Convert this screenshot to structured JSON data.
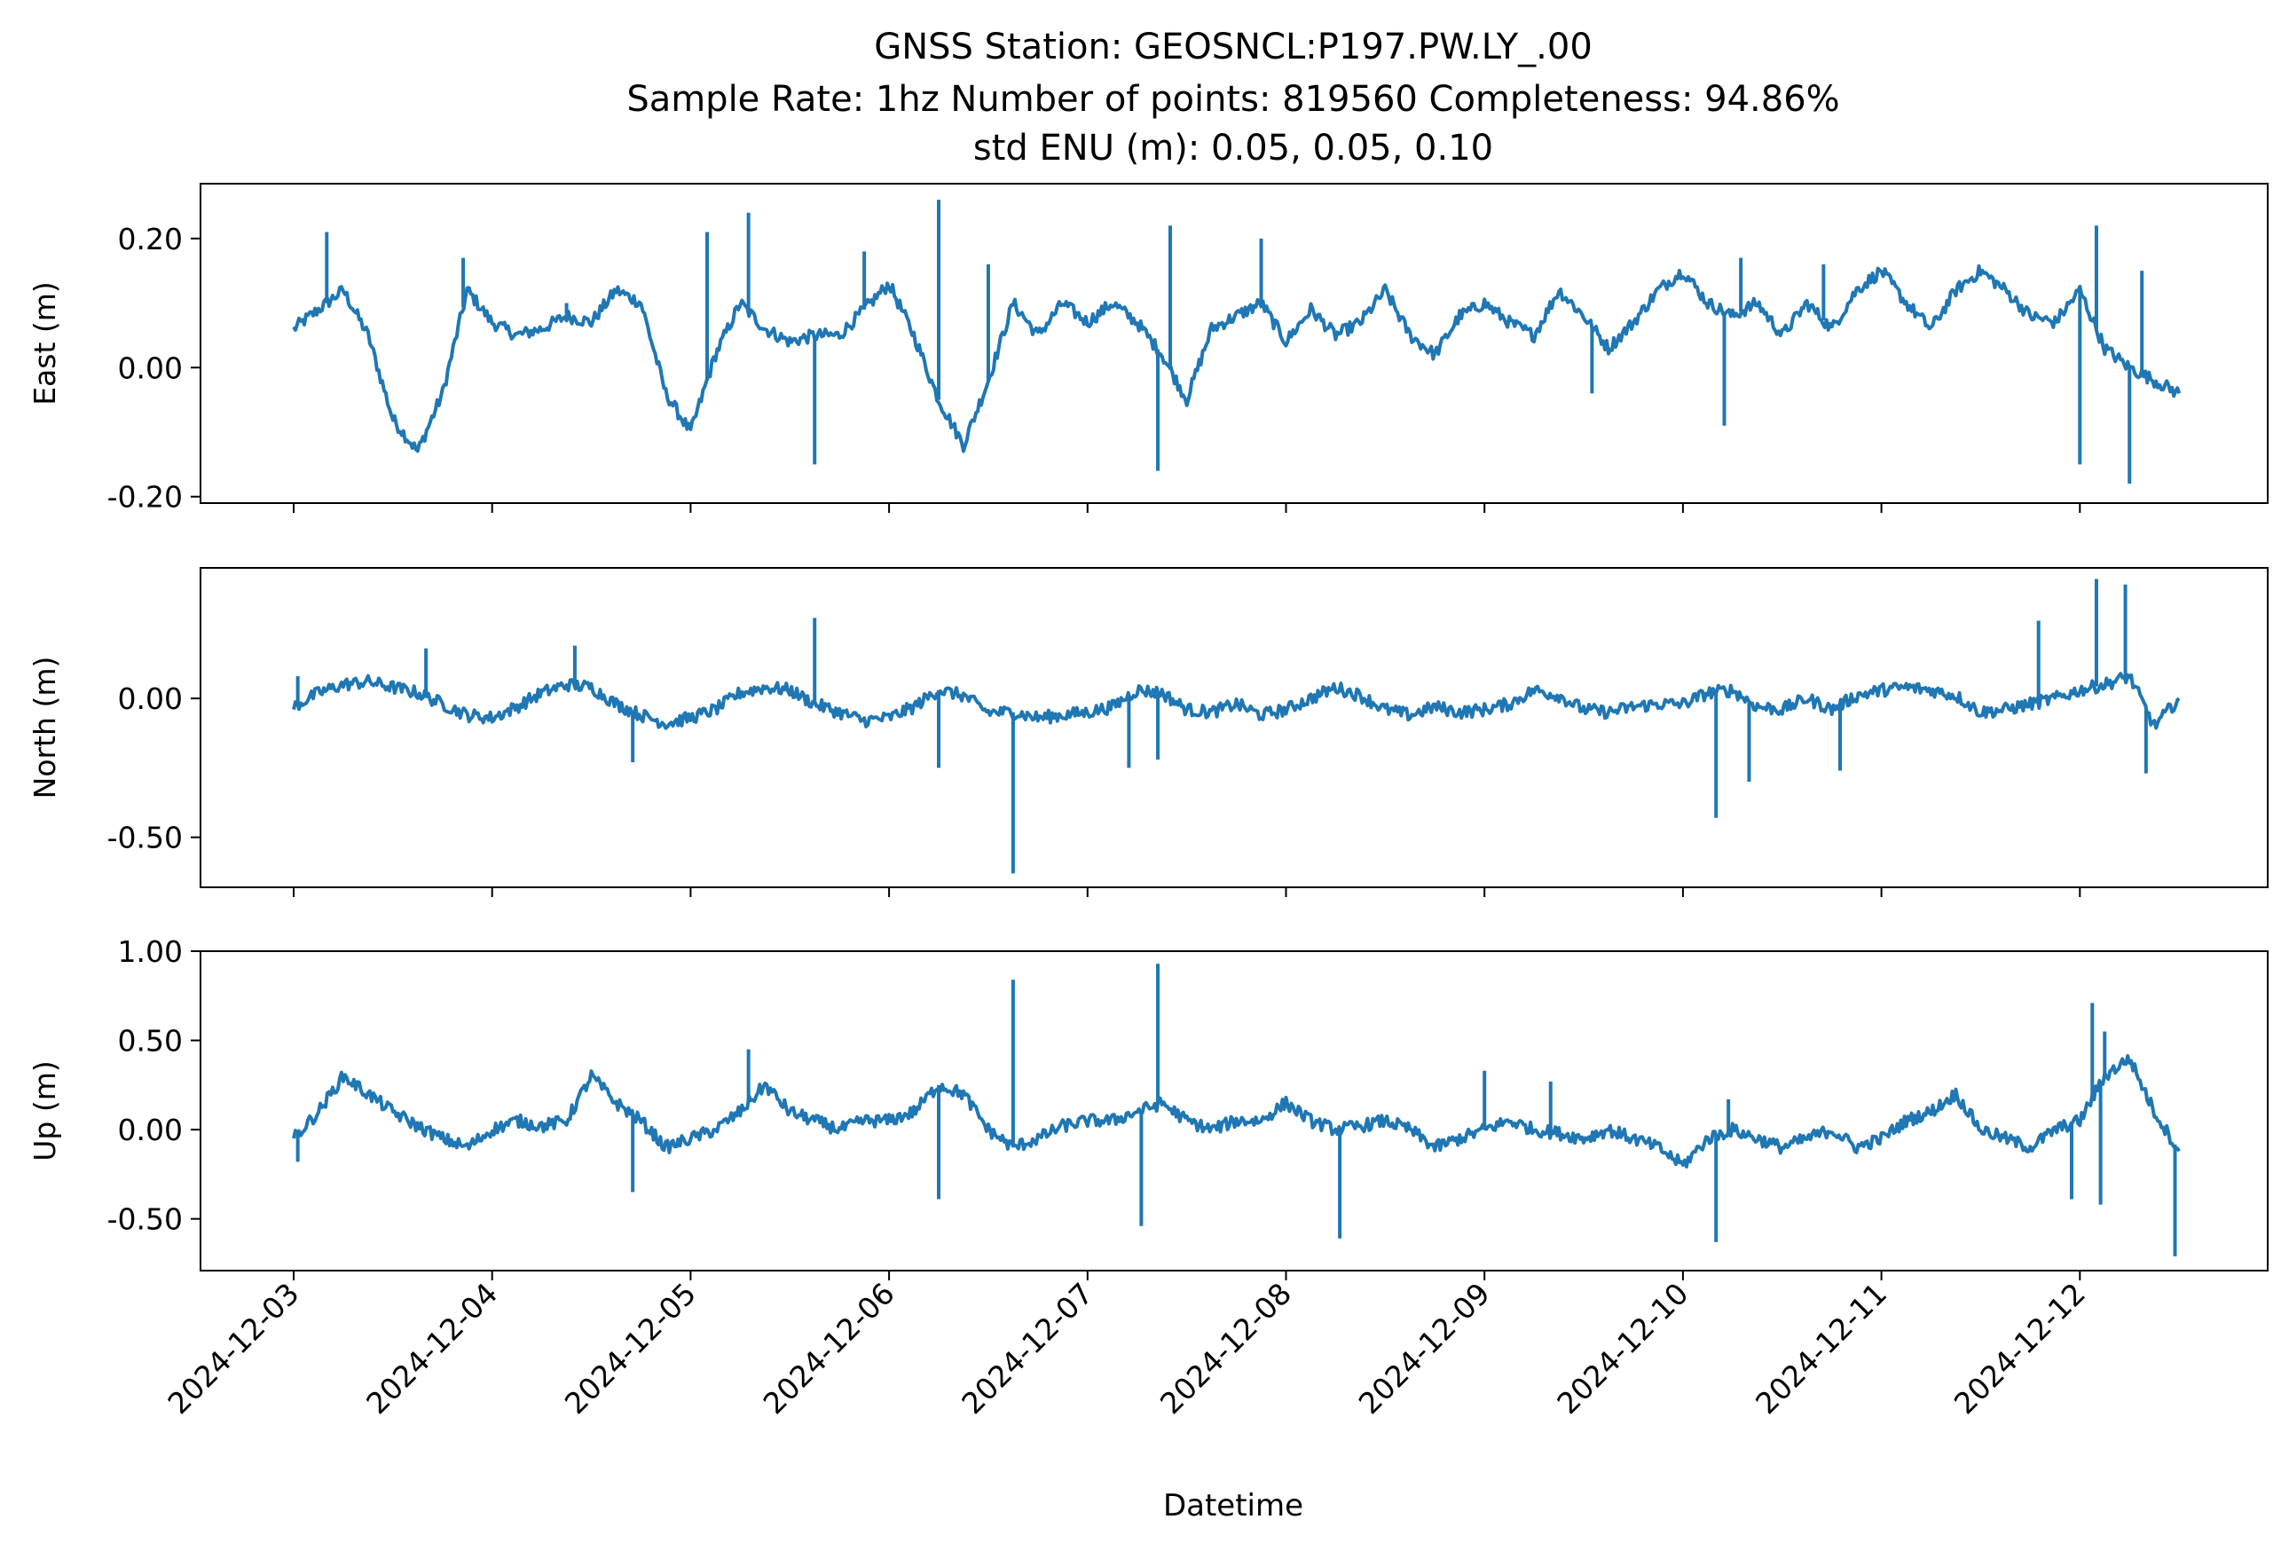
{
  "figure": {
    "title_lines": [
      "GNSS Station: GEOSNCL:P197.PW.LY_.00",
      "Sample Rate: 1hz   Number of points: 819560    Completeness:  94.86%",
      "std ENU (m):  0.05, 0.05, 0.10"
    ],
    "xlabel": "Datetime",
    "line_color": "#1f77b4"
  },
  "chart_data": [
    {
      "type": "line",
      "ylabel": "East (m)",
      "yticks": [
        -0.2,
        0.0,
        0.2
      ],
      "ytick_labels": [
        "-0.20",
        "0.00",
        "0.20"
      ],
      "ylim": [
        -0.21,
        0.285
      ],
      "xlim": [
        "2024-12-02T12:00",
        "2024-12-13T00:00"
      ],
      "x": [
        "2024-12-03T00:00",
        "2024-12-03T03:00",
        "2024-12-03T06:00",
        "2024-12-03T09:00",
        "2024-12-03T12:00",
        "2024-12-03T15:00",
        "2024-12-03T18:00",
        "2024-12-03T21:00",
        "2024-12-04T00:00",
        "2024-12-04T03:00",
        "2024-12-04T06:00",
        "2024-12-04T09:00",
        "2024-12-04T12:00",
        "2024-12-04T15:00",
        "2024-12-04T18:00",
        "2024-12-04T21:00",
        "2024-12-05T00:00",
        "2024-12-05T03:00",
        "2024-12-05T06:00",
        "2024-12-05T09:00",
        "2024-12-05T12:00",
        "2024-12-05T15:00",
        "2024-12-05T18:00",
        "2024-12-05T21:00",
        "2024-12-06T00:00",
        "2024-12-06T03:00",
        "2024-12-06T06:00",
        "2024-12-06T09:00",
        "2024-12-06T12:00",
        "2024-12-06T15:00",
        "2024-12-06T18:00",
        "2024-12-06T21:00",
        "2024-12-07T00:00",
        "2024-12-07T03:00",
        "2024-12-07T06:00",
        "2024-12-07T09:00",
        "2024-12-07T12:00",
        "2024-12-07T15:00",
        "2024-12-07T18:00",
        "2024-12-07T21:00",
        "2024-12-08T00:00",
        "2024-12-08T03:00",
        "2024-12-08T06:00",
        "2024-12-08T09:00",
        "2024-12-08T12:00",
        "2024-12-08T15:00",
        "2024-12-08T18:00",
        "2024-12-08T21:00",
        "2024-12-09T00:00",
        "2024-12-09T03:00",
        "2024-12-09T06:00",
        "2024-12-09T09:00",
        "2024-12-09T12:00",
        "2024-12-09T15:00",
        "2024-12-09T18:00",
        "2024-12-09T21:00",
        "2024-12-10T00:00",
        "2024-12-10T03:00",
        "2024-12-10T06:00",
        "2024-12-10T09:00",
        "2024-12-10T12:00",
        "2024-12-10T15:00",
        "2024-12-10T18:00",
        "2024-12-10T21:00",
        "2024-12-11T00:00",
        "2024-12-11T03:00",
        "2024-12-11T06:00",
        "2024-12-11T09:00",
        "2024-12-11T12:00",
        "2024-12-11T15:00",
        "2024-12-11T18:00",
        "2024-12-11T21:00",
        "2024-12-12T00:00",
        "2024-12-12T03:00",
        "2024-12-12T06:00",
        "2024-12-12T09:00",
        "2024-12-12T12:00"
      ],
      "y": [
        0.06,
        0.09,
        0.12,
        0.05,
        -0.08,
        -0.13,
        -0.04,
        0.12,
        0.07,
        0.05,
        0.06,
        0.08,
        0.07,
        0.12,
        0.1,
        -0.04,
        -0.1,
        0.02,
        0.1,
        0.06,
        0.04,
        0.05,
        0.05,
        0.09,
        0.13,
        0.05,
        -0.05,
        -0.12,
        -0.02,
        0.1,
        0.05,
        0.1,
        0.07,
        0.1,
        0.07,
        0.02,
        -0.05,
        0.06,
        0.08,
        0.1,
        0.04,
        0.09,
        0.05,
        0.07,
        0.12,
        0.05,
        0.02,
        0.08,
        0.1,
        0.07,
        0.05,
        0.12,
        0.08,
        0.03,
        0.07,
        0.12,
        0.15,
        0.1,
        0.08,
        0.1,
        0.05,
        0.1,
        0.06,
        0.12,
        0.15,
        0.1,
        0.06,
        0.12,
        0.15,
        0.12,
        0.08,
        0.07,
        0.12,
        0.03,
        0.0,
        -0.02,
        -0.04
      ],
      "spikes": [
        {
          "x": "2024-12-03T04:00",
          "y": 0.21
        },
        {
          "x": "2024-12-03T20:30",
          "y": 0.17
        },
        {
          "x": "2024-12-04T09:00",
          "y": 0.1
        },
        {
          "x": "2024-12-05T02:00",
          "y": 0.21
        },
        {
          "x": "2024-12-05T07:00",
          "y": 0.24
        },
        {
          "x": "2024-12-05T15:00",
          "y": -0.15
        },
        {
          "x": "2024-12-05T21:00",
          "y": 0.18
        },
        {
          "x": "2024-12-06T06:00",
          "y": 0.26
        },
        {
          "x": "2024-12-06T12:00",
          "y": 0.16
        },
        {
          "x": "2024-12-07T08:30",
          "y": -0.16
        },
        {
          "x": "2024-12-07T10:00",
          "y": 0.22
        },
        {
          "x": "2024-12-07T21:00",
          "y": 0.2
        },
        {
          "x": "2024-12-09T13:00",
          "y": -0.04
        },
        {
          "x": "2024-12-10T05:00",
          "y": -0.09
        },
        {
          "x": "2024-12-10T07:00",
          "y": 0.17
        },
        {
          "x": "2024-12-10T17:00",
          "y": 0.16
        },
        {
          "x": "2024-12-12T02:00",
          "y": 0.22
        },
        {
          "x": "2024-12-12T00:00",
          "y": -0.15
        },
        {
          "x": "2024-12-12T06:00",
          "y": -0.18
        },
        {
          "x": "2024-12-12T07:30",
          "y": 0.15
        }
      ]
    },
    {
      "type": "line",
      "ylabel": "North (m)",
      "yticks": [
        -0.5,
        0.0
      ],
      "ytick_labels": [
        "-0.50",
        "0.00"
      ],
      "ylim": [
        -0.68,
        0.47
      ],
      "xlim": [
        "2024-12-02T12:00",
        "2024-12-13T00:00"
      ],
      "x": [
        "2024-12-03T00:00",
        "2024-12-03T03:00",
        "2024-12-03T06:00",
        "2024-12-03T09:00",
        "2024-12-03T12:00",
        "2024-12-03T15:00",
        "2024-12-03T18:00",
        "2024-12-03T21:00",
        "2024-12-04T00:00",
        "2024-12-04T03:00",
        "2024-12-04T06:00",
        "2024-12-04T09:00",
        "2024-12-04T12:00",
        "2024-12-04T15:00",
        "2024-12-04T18:00",
        "2024-12-04T21:00",
        "2024-12-05T00:00",
        "2024-12-05T03:00",
        "2024-12-05T06:00",
        "2024-12-05T09:00",
        "2024-12-05T12:00",
        "2024-12-05T15:00",
        "2024-12-05T18:00",
        "2024-12-05T21:00",
        "2024-12-06T00:00",
        "2024-12-06T03:00",
        "2024-12-06T06:00",
        "2024-12-06T09:00",
        "2024-12-06T12:00",
        "2024-12-06T15:00",
        "2024-12-06T18:00",
        "2024-12-06T21:00",
        "2024-12-07T00:00",
        "2024-12-07T03:00",
        "2024-12-07T06:00",
        "2024-12-07T09:00",
        "2024-12-07T12:00",
        "2024-12-07T15:00",
        "2024-12-07T18:00",
        "2024-12-07T21:00",
        "2024-12-08T00:00",
        "2024-12-08T03:00",
        "2024-12-08T06:00",
        "2024-12-08T09:00",
        "2024-12-08T12:00",
        "2024-12-08T15:00",
        "2024-12-08T18:00",
        "2024-12-08T21:00",
        "2024-12-09T00:00",
        "2024-12-09T03:00",
        "2024-12-09T06:00",
        "2024-12-09T09:00",
        "2024-12-09T12:00",
        "2024-12-09T15:00",
        "2024-12-09T18:00",
        "2024-12-09T21:00",
        "2024-12-10T00:00",
        "2024-12-10T03:00",
        "2024-12-10T06:00",
        "2024-12-10T09:00",
        "2024-12-10T12:00",
        "2024-12-10T15:00",
        "2024-12-10T18:00",
        "2024-12-10T21:00",
        "2024-12-11T00:00",
        "2024-12-11T03:00",
        "2024-12-11T06:00",
        "2024-12-11T09:00",
        "2024-12-11T12:00",
        "2024-12-11T15:00",
        "2024-12-11T18:00",
        "2024-12-11T21:00",
        "2024-12-12T00:00",
        "2024-12-12T03:00",
        "2024-12-12T06:00",
        "2024-12-12T09:00",
        "2024-12-12T12:00"
      ],
      "y": [
        -0.03,
        0.02,
        0.05,
        0.06,
        0.04,
        0.02,
        -0.02,
        -0.06,
        -0.07,
        -0.03,
        0.02,
        0.05,
        0.04,
        -0.02,
        -0.06,
        -0.09,
        -0.07,
        -0.04,
        0.02,
        0.04,
        0.03,
        -0.02,
        -0.05,
        -0.08,
        -0.07,
        -0.03,
        0.03,
        0.01,
        -0.05,
        -0.05,
        -0.07,
        -0.06,
        -0.05,
        -0.03,
        0.03,
        0.02,
        -0.04,
        -0.05,
        -0.02,
        -0.06,
        -0.04,
        0.0,
        0.04,
        0.01,
        -0.04,
        -0.06,
        -0.03,
        -0.05,
        -0.04,
        -0.02,
        0.03,
        0.01,
        -0.04,
        -0.05,
        -0.03,
        -0.02,
        -0.02,
        0.02,
        0.03,
        -0.03,
        -0.04,
        0.0,
        -0.04,
        0.01,
        0.03,
        0.04,
        0.03,
        0.01,
        -0.05,
        -0.04,
        -0.02,
        0.0,
        0.03,
        0.05,
        0.08,
        -0.1,
        0.0
      ],
      "spikes": [
        {
          "x": "2024-12-03T00:30",
          "y": 0.08
        },
        {
          "x": "2024-12-03T16:00",
          "y": 0.18
        },
        {
          "x": "2024-12-04T10:00",
          "y": 0.19
        },
        {
          "x": "2024-12-04T17:00",
          "y": -0.23
        },
        {
          "x": "2024-12-05T15:00",
          "y": 0.29
        },
        {
          "x": "2024-12-06T06:00",
          "y": -0.25
        },
        {
          "x": "2024-12-06T15:00",
          "y": -0.63
        },
        {
          "x": "2024-12-07T05:00",
          "y": -0.25
        },
        {
          "x": "2024-12-07T08:30",
          "y": -0.22
        },
        {
          "x": "2024-12-10T04:00",
          "y": -0.43
        },
        {
          "x": "2024-12-10T08:00",
          "y": -0.3
        },
        {
          "x": "2024-12-10T19:00",
          "y": -0.26
        },
        {
          "x": "2024-12-11T19:00",
          "y": 0.28
        },
        {
          "x": "2024-12-12T02:00",
          "y": 0.43
        },
        {
          "x": "2024-12-12T05:30",
          "y": 0.41
        },
        {
          "x": "2024-12-12T08:00",
          "y": -0.27
        }
      ]
    },
    {
      "type": "line",
      "ylabel": "Up (m)",
      "yticks": [
        -0.5,
        0.0,
        0.5,
        1.0
      ],
      "ytick_labels": [
        "-0.50",
        "0.00",
        "0.50",
        "1.00"
      ],
      "ylim": [
        -0.79,
        1.0
      ],
      "xlim": [
        "2024-12-02T12:00",
        "2024-12-13T00:00"
      ],
      "x": [
        "2024-12-03T00:00",
        "2024-12-03T03:00",
        "2024-12-03T06:00",
        "2024-12-03T09:00",
        "2024-12-03T12:00",
        "2024-12-03T15:00",
        "2024-12-03T18:00",
        "2024-12-03T21:00",
        "2024-12-04T00:00",
        "2024-12-04T03:00",
        "2024-12-04T06:00",
        "2024-12-04T09:00",
        "2024-12-04T12:00",
        "2024-12-04T15:00",
        "2024-12-04T18:00",
        "2024-12-04T21:00",
        "2024-12-05T00:00",
        "2024-12-05T03:00",
        "2024-12-05T06:00",
        "2024-12-05T09:00",
        "2024-12-05T12:00",
        "2024-12-05T15:00",
        "2024-12-05T18:00",
        "2024-12-05T21:00",
        "2024-12-06T00:00",
        "2024-12-06T03:00",
        "2024-12-06T06:00",
        "2024-12-06T09:00",
        "2024-12-06T12:00",
        "2024-12-06T15:00",
        "2024-12-06T18:00",
        "2024-12-06T21:00",
        "2024-12-07T00:00",
        "2024-12-07T03:00",
        "2024-12-07T06:00",
        "2024-12-07T09:00",
        "2024-12-07T12:00",
        "2024-12-07T15:00",
        "2024-12-07T18:00",
        "2024-12-07T21:00",
        "2024-12-08T00:00",
        "2024-12-08T03:00",
        "2024-12-08T06:00",
        "2024-12-08T09:00",
        "2024-12-08T12:00",
        "2024-12-08T15:00",
        "2024-12-08T18:00",
        "2024-12-08T21:00",
        "2024-12-09T00:00",
        "2024-12-09T03:00",
        "2024-12-09T06:00",
        "2024-12-09T09:00",
        "2024-12-09T12:00",
        "2024-12-09T15:00",
        "2024-12-09T18:00",
        "2024-12-09T21:00",
        "2024-12-10T00:00",
        "2024-12-10T03:00",
        "2024-12-10T06:00",
        "2024-12-10T09:00",
        "2024-12-10T12:00",
        "2024-12-10T15:00",
        "2024-12-10T18:00",
        "2024-12-10T21:00",
        "2024-12-11T00:00",
        "2024-12-11T03:00",
        "2024-12-11T06:00",
        "2024-12-11T09:00",
        "2024-12-11T12:00",
        "2024-12-11T15:00",
        "2024-12-11T18:00",
        "2024-12-11T21:00",
        "2024-12-12T00:00",
        "2024-12-12T03:00",
        "2024-12-12T06:00",
        "2024-12-12T09:00",
        "2024-12-12T12:00"
      ],
      "y": [
        -0.05,
        0.1,
        0.3,
        0.2,
        0.1,
        0.02,
        -0.05,
        -0.1,
        0.0,
        0.05,
        0.02,
        0.05,
        0.3,
        0.15,
        0.05,
        -0.1,
        -0.05,
        0.0,
        0.1,
        0.25,
        0.1,
        0.05,
        0.0,
        0.05,
        0.05,
        0.1,
        0.25,
        0.2,
        0.0,
        -0.1,
        -0.05,
        0.02,
        0.05,
        0.05,
        0.1,
        0.15,
        0.05,
        0.0,
        0.05,
        0.05,
        0.15,
        0.05,
        0.0,
        0.02,
        0.05,
        0.0,
        -0.1,
        -0.05,
        0.0,
        0.05,
        0.0,
        -0.02,
        -0.05,
        0.0,
        -0.05,
        -0.1,
        -0.2,
        -0.05,
        0.0,
        -0.05,
        -0.1,
        -0.05,
        0.0,
        -0.1,
        -0.05,
        0.05,
        0.1,
        0.2,
        0.0,
        -0.05,
        -0.1,
        0.0,
        0.05,
        0.3,
        0.4,
        0.1,
        -0.12
      ],
      "spikes": [
        {
          "x": "2024-12-03T00:30",
          "y": -0.18
        },
        {
          "x": "2024-12-04T17:00",
          "y": -0.35
        },
        {
          "x": "2024-12-05T07:00",
          "y": 0.45
        },
        {
          "x": "2024-12-06T06:00",
          "y": -0.39
        },
        {
          "x": "2024-12-06T15:00",
          "y": 0.84
        },
        {
          "x": "2024-12-07T06:30",
          "y": -0.54
        },
        {
          "x": "2024-12-07T08:30",
          "y": 0.93
        },
        {
          "x": "2024-12-08T06:30",
          "y": -0.61
        },
        {
          "x": "2024-12-09T00:00",
          "y": 0.33
        },
        {
          "x": "2024-12-09T08:00",
          "y": 0.27
        },
        {
          "x": "2024-12-10T04:00",
          "y": -0.63
        },
        {
          "x": "2024-12-10T05:30",
          "y": 0.17
        },
        {
          "x": "2024-12-11T23:00",
          "y": -0.39
        },
        {
          "x": "2024-12-12T01:30",
          "y": 0.71
        },
        {
          "x": "2024-12-12T02:30",
          "y": -0.42
        },
        {
          "x": "2024-12-12T03:00",
          "y": 0.55
        },
        {
          "x": "2024-12-12T11:30",
          "y": -0.71
        }
      ]
    }
  ],
  "x_ticks": [
    "2024-12-03",
    "2024-12-04",
    "2024-12-05",
    "2024-12-06",
    "2024-12-07",
    "2024-12-08",
    "2024-12-09",
    "2024-12-10",
    "2024-12-11",
    "2024-12-12"
  ]
}
